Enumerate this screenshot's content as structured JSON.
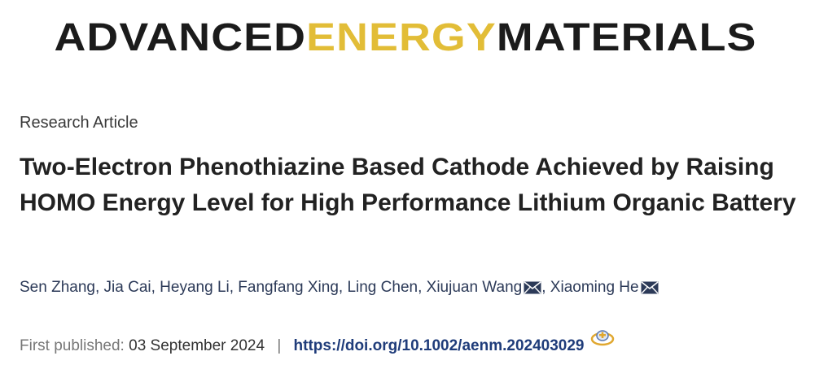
{
  "journal": {
    "word1": "ADVANCED",
    "word2": "ENERGY",
    "word3": "MATERIALS",
    "colors": {
      "dark": "#1b1b1b",
      "gold": "#e2bd37"
    }
  },
  "article": {
    "type": "Research Article",
    "title": "Two-Electron Phenothiazine Based Cathode Achieved by Raising HOMO Energy Level for High Performance Lithium Organic Battery"
  },
  "authors": [
    {
      "name": "Sen Zhang",
      "corresponding": false
    },
    {
      "name": "Jia Cai",
      "corresponding": false
    },
    {
      "name": "Heyang Li",
      "corresponding": false
    },
    {
      "name": "Fangfang Xing",
      "corresponding": false
    },
    {
      "name": "Ling Chen",
      "corresponding": false
    },
    {
      "name": "Xiujuan Wang",
      "corresponding": true,
      "icon": "envelope-icon"
    },
    {
      "name": "Xiaoming He",
      "corresponding": true,
      "icon": "envelope-icon"
    }
  ],
  "author_separator": ",",
  "publication": {
    "label": "First published:",
    "date": "03 September 2024",
    "separator": "|",
    "doi": "https://doi.org/10.1002/aenm.202403029",
    "crossmark_icon": "crossmark-icon"
  }
}
